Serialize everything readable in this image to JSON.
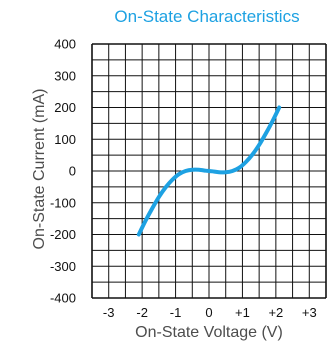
{
  "chart_data": {
    "type": "line",
    "title": "On-State Characteristics",
    "xlabel": "On-State Voltage (V)",
    "ylabel": "On-State Current (mA)",
    "xlim": [
      -3.5,
      3.5
    ],
    "ylim": [
      -400,
      400
    ],
    "grid": true,
    "x_ticks": [
      -3,
      -2,
      -1,
      0,
      1,
      2,
      3
    ],
    "x_tick_labels": [
      "-3",
      "-2",
      "-1",
      "0",
      "+1",
      "+2",
      "+3"
    ],
    "y_ticks": [
      400,
      300,
      200,
      100,
      0,
      -100,
      -200,
      -300,
      -400
    ],
    "y_tick_labels": [
      "400",
      "300",
      "200",
      "100",
      "0",
      "-100",
      "-200",
      "-300",
      "-400"
    ],
    "series": [
      {
        "x": [
          -2.1,
          -1.9,
          -1.7,
          -1.5,
          -1.3,
          -1.1,
          -0.9,
          -0.7,
          -0.5,
          -0.3,
          -0.1,
          0.0,
          0.1,
          0.3,
          0.5,
          0.7,
          0.9,
          1.1,
          1.3,
          1.5,
          1.7,
          1.9,
          2.1
        ],
        "y": [
          -200,
          -157,
          -118,
          -82,
          -52,
          -28,
          -10,
          0,
          4,
          4,
          1,
          0,
          -1,
          -4,
          -4,
          0,
          10,
          28,
          52,
          82,
          118,
          157,
          200
        ]
      }
    ],
    "colors": {
      "series": "#1da1e2",
      "title": "#1da1e2",
      "grid": "#111111"
    }
  }
}
